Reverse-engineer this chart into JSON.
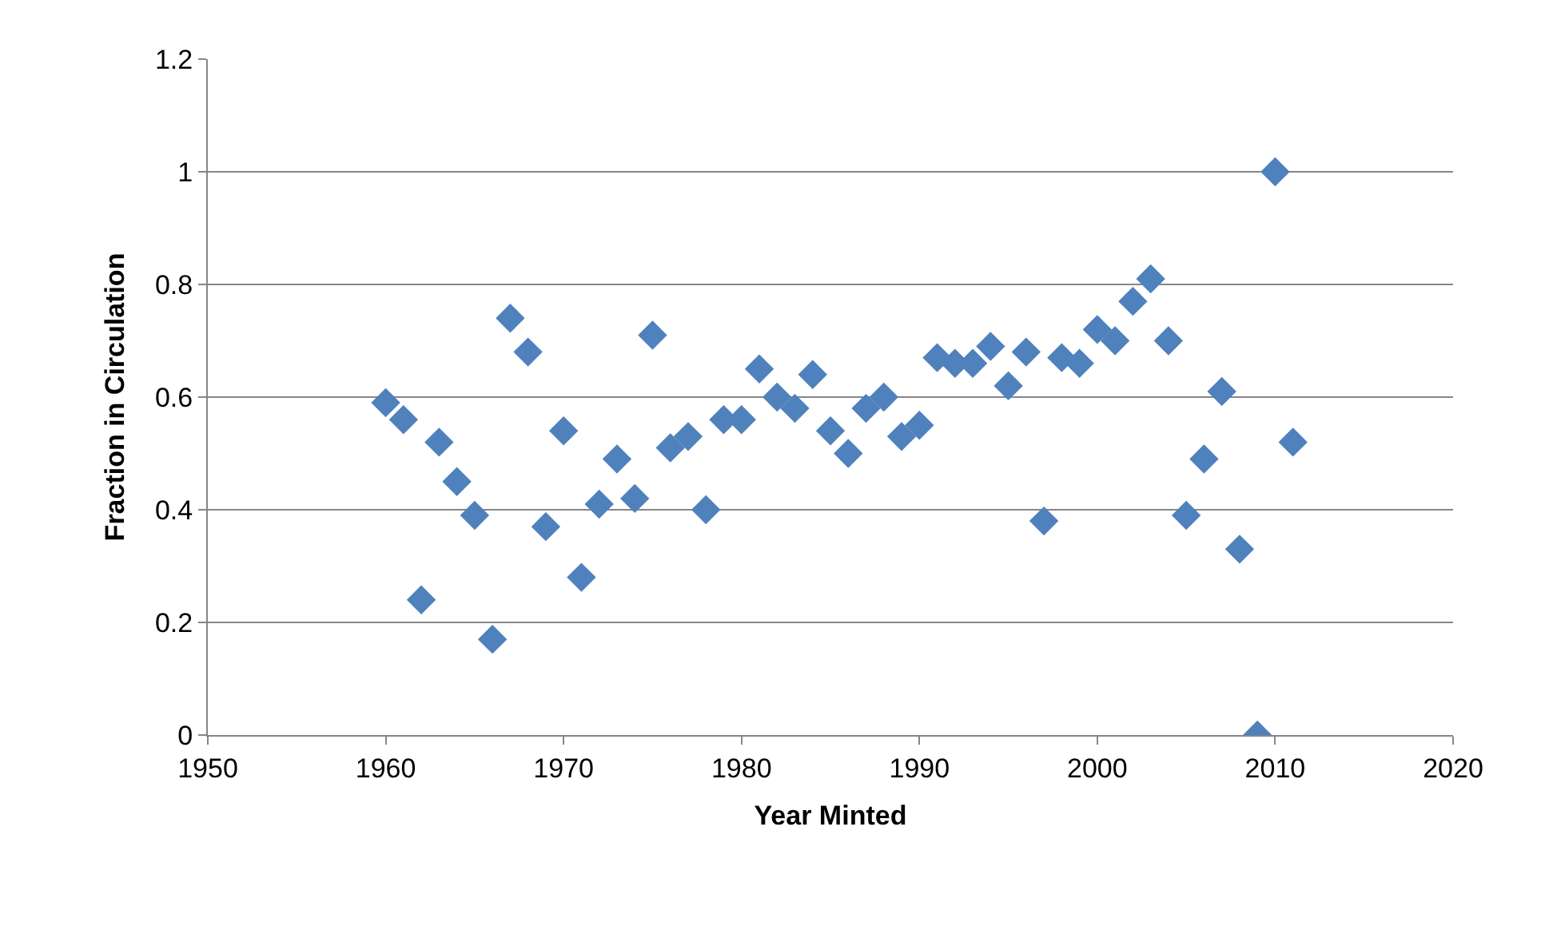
{
  "chart_data": {
    "type": "scatter",
    "xlabel": "Year Minted",
    "ylabel": "Fraction in Circulation",
    "marker": "diamond",
    "grid": "y",
    "xlim": [
      1950,
      2020
    ],
    "xticks": [
      1950,
      1960,
      1970,
      1980,
      1990,
      2000,
      2010,
      2020
    ],
    "ylim": [
      0,
      1.2
    ],
    "yticks": [
      0,
      {
        "value": 0.2,
        "label": "0.2"
      },
      {
        "value": 0.4,
        "label": "0.4"
      },
      {
        "value": 0.6,
        "label": "0.6"
      },
      {
        "value": 0.8,
        "label": "0.8"
      },
      1,
      {
        "value": 1.2,
        "label": "1.2"
      }
    ],
    "series": [
      {
        "color": "#4f81bd",
        "x": [
          1960,
          1961,
          1962,
          1963,
          1964,
          1965,
          1966,
          1967,
          1968,
          1969,
          1970,
          1971,
          1972,
          1973,
          1974,
          1975,
          1976,
          1977,
          1978,
          1979,
          1980,
          1981,
          1982,
          1983,
          1984,
          1985,
          1986,
          1987,
          1988,
          1989,
          1990,
          1991,
          1992,
          1993,
          1994,
          1995,
          1996,
          1997,
          1998,
          1999,
          2000,
          2001,
          2002,
          2003,
          2004,
          2005,
          2006,
          2007,
          2008,
          2009,
          2010,
          2011
        ],
        "values": [
          0.59,
          0.56,
          0.24,
          0.52,
          0.45,
          0.39,
          0.17,
          0.74,
          0.68,
          0.37,
          0.54,
          0.28,
          0.41,
          0.49,
          0.42,
          0.71,
          0.51,
          0.53,
          0.4,
          0.56,
          0.56,
          0.65,
          0.6,
          0.58,
          0.64,
          0.54,
          0.5,
          0.58,
          0.6,
          0.53,
          0.55,
          0.67,
          0.66,
          0.66,
          0.69,
          0.62,
          0.68,
          0.38,
          0.67,
          0.66,
          0.72,
          0.7,
          0.77,
          0.81,
          0.7,
          0.39,
          0.49,
          0.61,
          0.33,
          0.0,
          1.0,
          0.52
        ]
      }
    ]
  }
}
